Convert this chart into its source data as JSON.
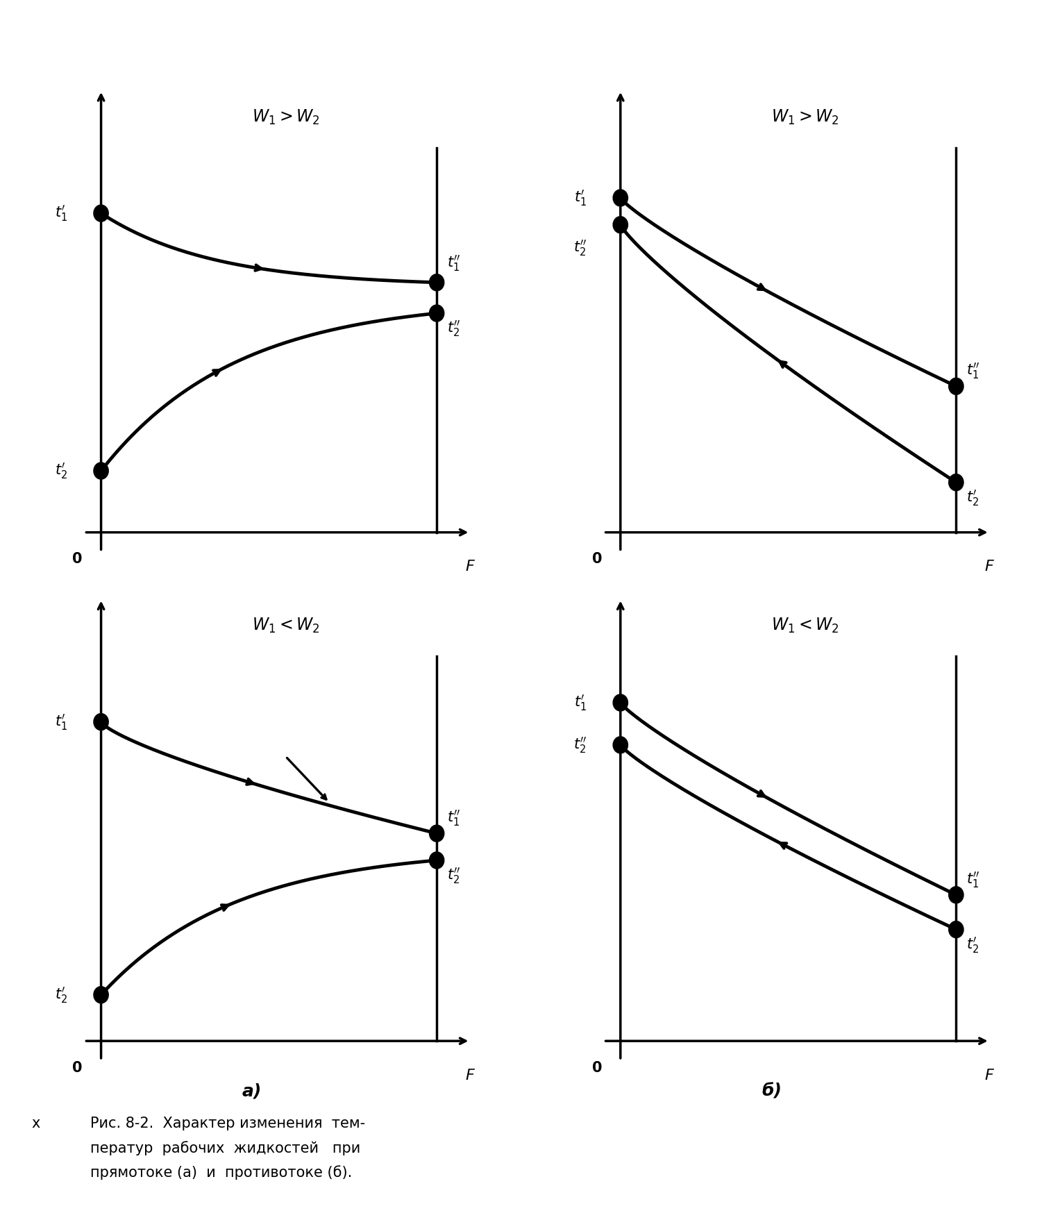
{
  "lw": 3.0,
  "lw_axis": 2.5,
  "fs_label": 15,
  "fs_title": 17,
  "fs_caption": 15,
  "fs_sublabel": 18,
  "background": "#ffffff",
  "caption_line1": "Рис. 8-2.  Характер изменения  тем-",
  "caption_line2": "ператур  рабочих  жидкостей   при",
  "caption_line3": "прямотоке (а)  и  противотоке (б)."
}
